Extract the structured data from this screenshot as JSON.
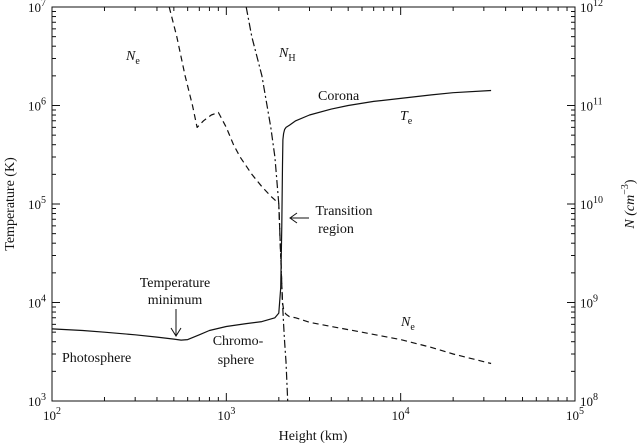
{
  "chart_data": {
    "type": "line",
    "x_scale": "log",
    "y_left_scale": "log",
    "y_right_scale": "log",
    "xlabel": "Height (km)",
    "ylabel_left": "Temperature (K)",
    "ylabel_right": {
      "main": "N (cm",
      "sup": "−3",
      "close": ")"
    },
    "xlim": [
      100,
      100000
    ],
    "ylim_left": [
      1000,
      10000000
    ],
    "ylim_right": [
      100000000,
      1000000000000
    ],
    "x_ticks": [
      {
        "base": "10",
        "exp": "2",
        "value": 100
      },
      {
        "base": "10",
        "exp": "3",
        "value": 1000
      },
      {
        "base": "10",
        "exp": "4",
        "value": 10000
      },
      {
        "base": "10",
        "exp": "5",
        "value": 100000
      }
    ],
    "y_left_ticks": [
      {
        "base": "10",
        "exp": "3",
        "value": 1000
      },
      {
        "base": "10",
        "exp": "4",
        "value": 10000
      },
      {
        "base": "10",
        "exp": "5",
        "value": 100000
      },
      {
        "base": "10",
        "exp": "6",
        "value": 1000000
      },
      {
        "base": "10",
        "exp": "7",
        "value": 10000000
      }
    ],
    "y_right_ticks": [
      {
        "base": "10",
        "exp": "8",
        "value": 100000000
      },
      {
        "base": "10",
        "exp": "9",
        "value": 1000000000
      },
      {
        "base": "10",
        "exp": "10",
        "value": 10000000000
      },
      {
        "base": "10",
        "exp": "11",
        "value": 100000000000
      },
      {
        "base": "10",
        "exp": "12",
        "value": 1000000000000
      }
    ],
    "series": [
      {
        "name": "T_e",
        "axis": "left",
        "style": "solid",
        "color": "#111111",
        "x": [
          100,
          150,
          200,
          300,
          400,
          500,
          550,
          600,
          700,
          800,
          1000,
          1300,
          1600,
          1900,
          2000,
          2050,
          2080,
          2100,
          2110,
          2130,
          2160,
          2200,
          2300,
          2500,
          3000,
          4000,
          5000,
          7000,
          10000,
          15000,
          20000,
          33000
        ],
        "y": [
          5400,
          5200,
          5000,
          4700,
          4450,
          4250,
          4150,
          4200,
          4700,
          5200,
          5700,
          6100,
          6400,
          7000,
          7800,
          14000,
          60000,
          250000,
          450000,
          520000,
          570000,
          600000,
          630000,
          700000,
          800000,
          920000,
          1000000,
          1100000,
          1180000,
          1280000,
          1350000,
          1420000
        ]
      },
      {
        "name": "N_e",
        "axis": "right",
        "style": "dashed",
        "color": "#111111",
        "x": [
          470,
          520,
          580,
          640,
          680,
          740,
          820,
          900,
          1000,
          1100,
          1200,
          1400,
          1600,
          1800,
          1900,
          2000,
          2050,
          2080,
          2100,
          2130,
          2160,
          2200,
          2300,
          2500,
          3000,
          4000,
          6000,
          10000,
          15000,
          20000,
          33000
        ],
        "y": [
          1000000000000,
          500000000000,
          200000000000,
          100000000000,
          60000000000,
          70000000000,
          80000000000,
          85000000000,
          60000000000,
          40000000000,
          30000000000,
          20000000000,
          15000000000,
          12000000000,
          11000000000,
          10000000000,
          3000000000,
          1500000000,
          1000000000,
          850000000,
          800000000,
          760000000,
          720000000,
          700000000,
          630000000,
          570000000,
          500000000,
          420000000,
          350000000,
          300000000,
          240000000
        ]
      },
      {
        "name": "N_H",
        "axis": "right",
        "style": "dashdot",
        "color": "#111111",
        "x": [
          1300,
          1400,
          1600,
          1800,
          1900,
          2000,
          2050,
          2100,
          2130,
          2160,
          2200,
          2250
        ],
        "y": [
          1000000000000,
          500000000000,
          200000000000,
          60000000000,
          30000000000,
          10000000000,
          3000000000,
          1000000000,
          600000000,
          400000000,
          250000000,
          100000000
        ]
      }
    ],
    "annotations": [
      {
        "id": "corona",
        "text": "Corona"
      },
      {
        "id": "transition",
        "lines": [
          "Transition",
          "region"
        ]
      },
      {
        "id": "temp_min",
        "lines": [
          "Temperature",
          "minimum"
        ]
      },
      {
        "id": "chromosphere",
        "lines": [
          "Chromo-",
          "sphere"
        ]
      },
      {
        "id": "photosphere",
        "text": "Photosphere"
      }
    ],
    "series_labels": [
      {
        "id": "ne_top",
        "main": "N",
        "sub": "e"
      },
      {
        "id": "nh_top",
        "main": "N",
        "sub": "H"
      },
      {
        "id": "te_label",
        "main": "T",
        "sub": "e"
      },
      {
        "id": "ne_bottom",
        "main": "N",
        "sub": "e"
      }
    ]
  }
}
